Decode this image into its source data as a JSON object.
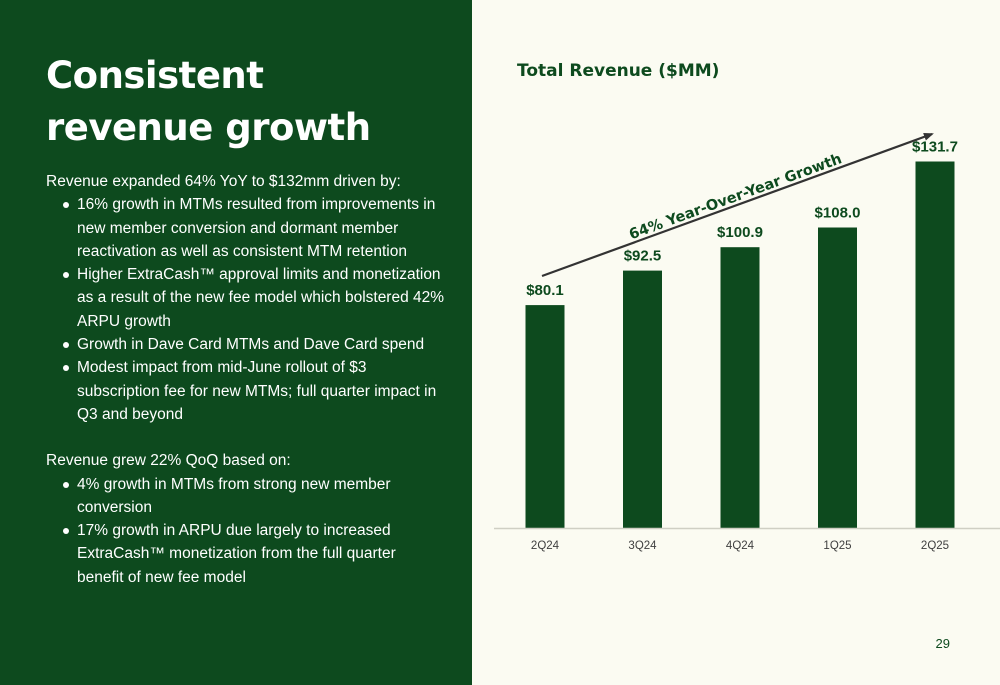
{
  "left": {
    "title_lines": [
      "Consistent",
      "revenue growth"
    ],
    "section1": {
      "intro": "Revenue expanded 64% YoY to $132mm driven by:",
      "bullets": [
        "16% growth in MTMs resulted from improvements in new member conversion and dormant member reactivation as well as consistent MTM retention",
        "Higher ExtraCash™ approval limits and monetization as a result of the new fee model which bolstered 42% ARPU growth",
        "Growth in Dave Card MTMs and Dave Card spend",
        "Modest impact from mid-June rollout of $3 subscription fee for new MTMs; full quarter impact in Q3 and beyond"
      ]
    },
    "section2": {
      "intro": "Revenue grew 22% QoQ based on:",
      "bullets": [
        "4% growth in MTMs from strong new member conversion",
        "17% growth in ARPU due largely to increased ExtraCash™ monetization from the full quarter benefit of new fee model"
      ]
    }
  },
  "page_number": "29",
  "colors": {
    "brand_green": "#0d4a1e",
    "background": "#fbfbf2",
    "arrow": "#333333"
  },
  "chart_data": {
    "type": "bar",
    "title": "Total Revenue ($MM)",
    "categories": [
      "2Q24",
      "3Q24",
      "4Q24",
      "1Q25",
      "2Q25"
    ],
    "values": [
      80.1,
      92.5,
      100.9,
      108.0,
      131.7
    ],
    "value_labels": [
      "$80.1",
      "$92.5",
      "$100.9",
      "$108.0",
      "$131.7"
    ],
    "annotation": "64% Year-Over-Year Growth",
    "ylim": [
      0,
      140
    ],
    "xlabel": "",
    "ylabel": "",
    "grid": false
  }
}
